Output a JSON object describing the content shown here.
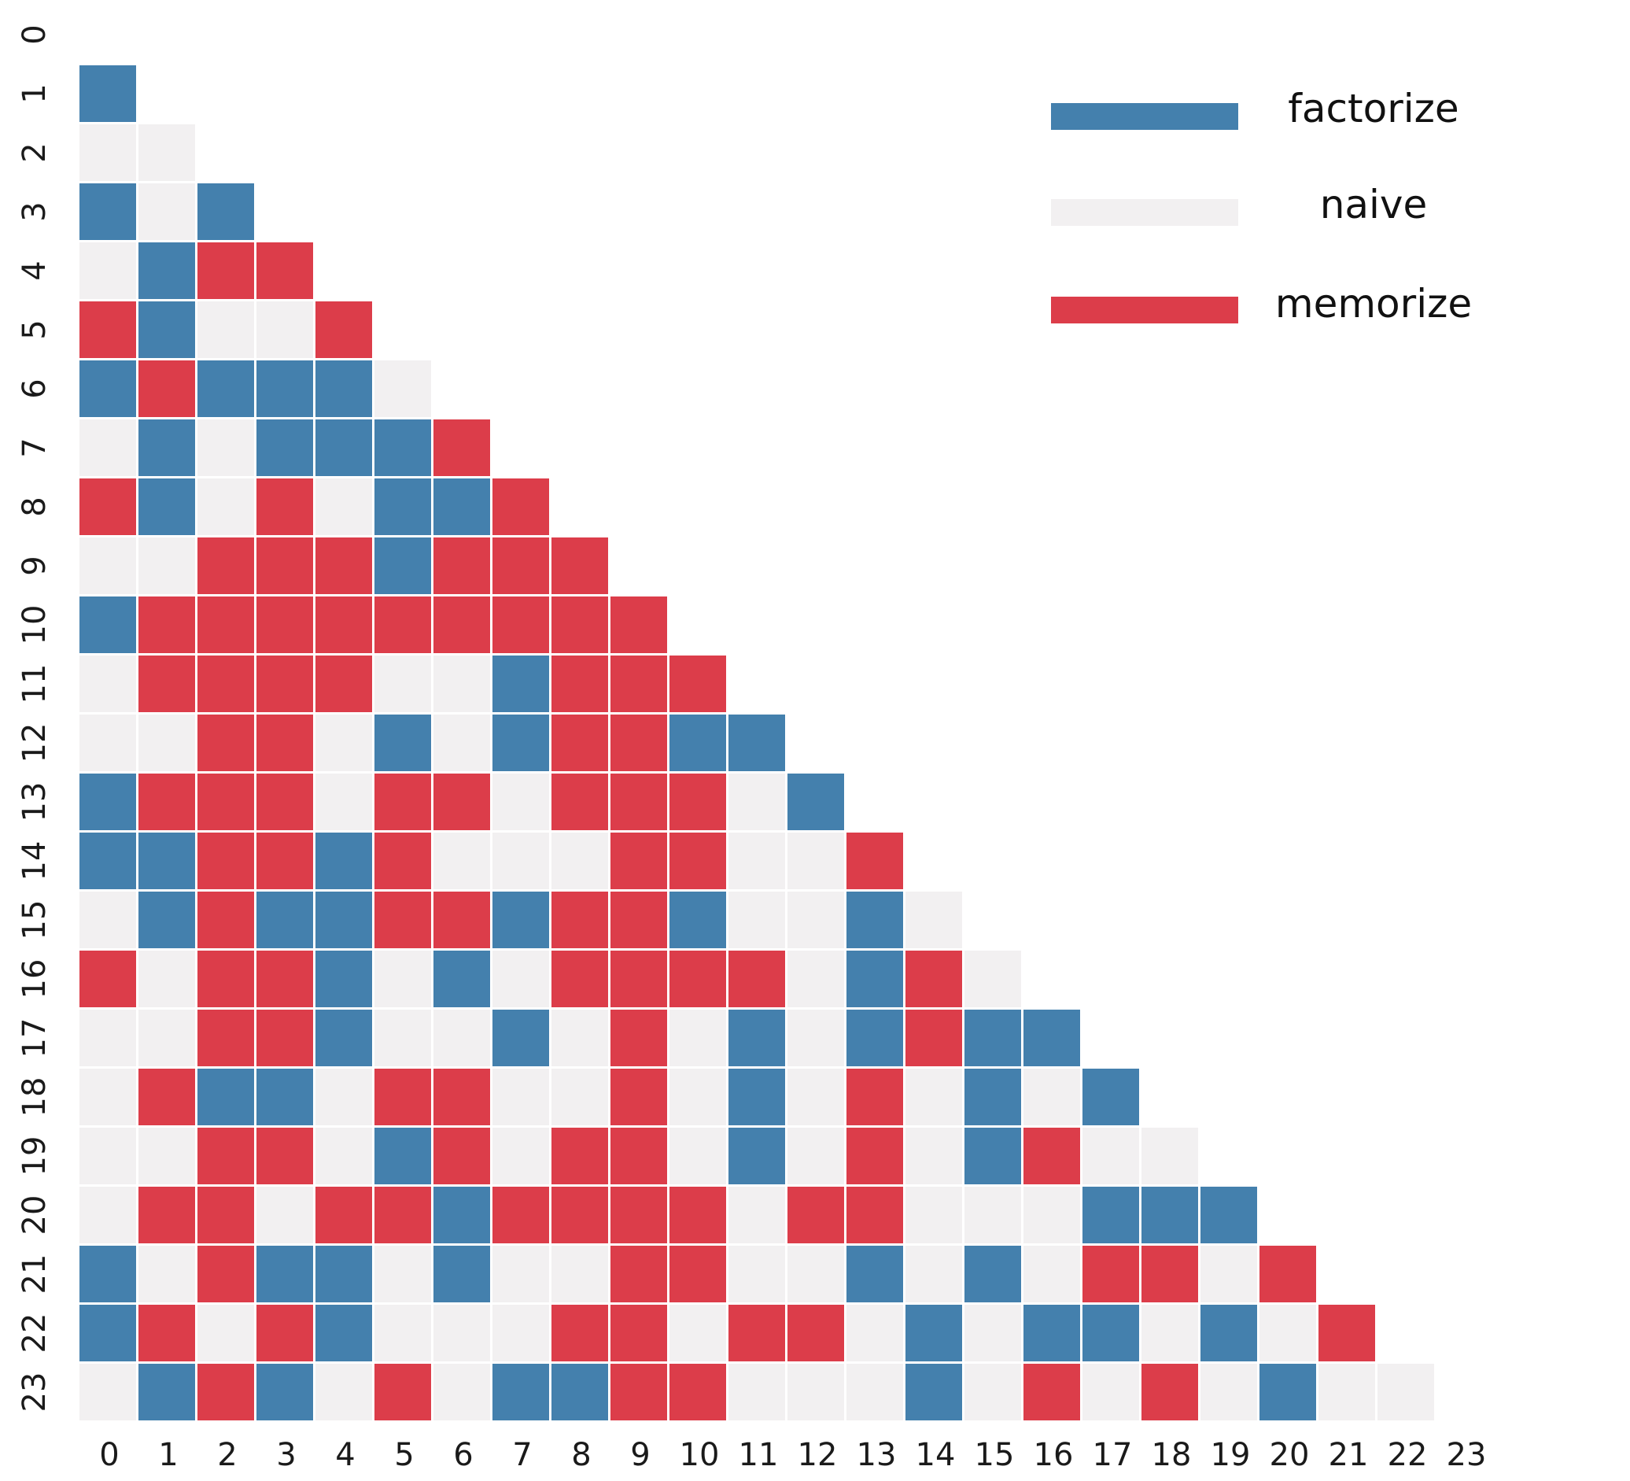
{
  "chart_data": {
    "type": "heatmap",
    "title": "",
    "xlabel": "",
    "ylabel": "",
    "x_categories": [
      "0",
      "1",
      "2",
      "3",
      "4",
      "5",
      "6",
      "7",
      "8",
      "9",
      "10",
      "11",
      "12",
      "13",
      "14",
      "15",
      "16",
      "17",
      "18",
      "19",
      "20",
      "21",
      "22",
      "23"
    ],
    "y_categories": [
      "0",
      "1",
      "2",
      "3",
      "4",
      "5",
      "6",
      "7",
      "8",
      "9",
      "10",
      "11",
      "12",
      "13",
      "14",
      "15",
      "16",
      "17",
      "18",
      "19",
      "20",
      "21",
      "22",
      "23"
    ],
    "categories": [
      {
        "code": "F",
        "label": "factorize",
        "color": "#4480ad"
      },
      {
        "code": "N",
        "label": "naive",
        "color": "#f2f0f1"
      },
      {
        "code": "M",
        "label": "memorize",
        "color": "#dc3d4a"
      }
    ],
    "legend_position": "top-right",
    "mask": "lower-triangle (row > column)",
    "rows": [
      "",
      "F",
      "NN",
      "FNF",
      "NFMM",
      "MFNNM",
      "FMFFFN",
      "NFNFFFM",
      "MFNMNFFM",
      "NNMMMFMMM",
      "FMMMMMMMMM",
      "NMMMMNNFMMM",
      "NNMMNFNFMMFF",
      "FMMMNMMNMMMNF",
      "FFMMFMNNNMMNNM",
      "NFMFFMMFMMFNNFN",
      "MNMMFNFNMMMMNFMN",
      "NNMMFNNFNMNFNFMFF",
      "NMFFNMMNNMNFNMNFNF",
      "NNMMNFMNMMNFNMNFMNN",
      "NMMNMMFMMMMNMMNNNFFF",
      "FNMFFNFNNMMNNFNFNMMNM",
      "FMNMFNNNMMNMMNFNFFNFNM",
      "NFMFNMNFFMMNNNFNMNMNFNN"
    ]
  }
}
